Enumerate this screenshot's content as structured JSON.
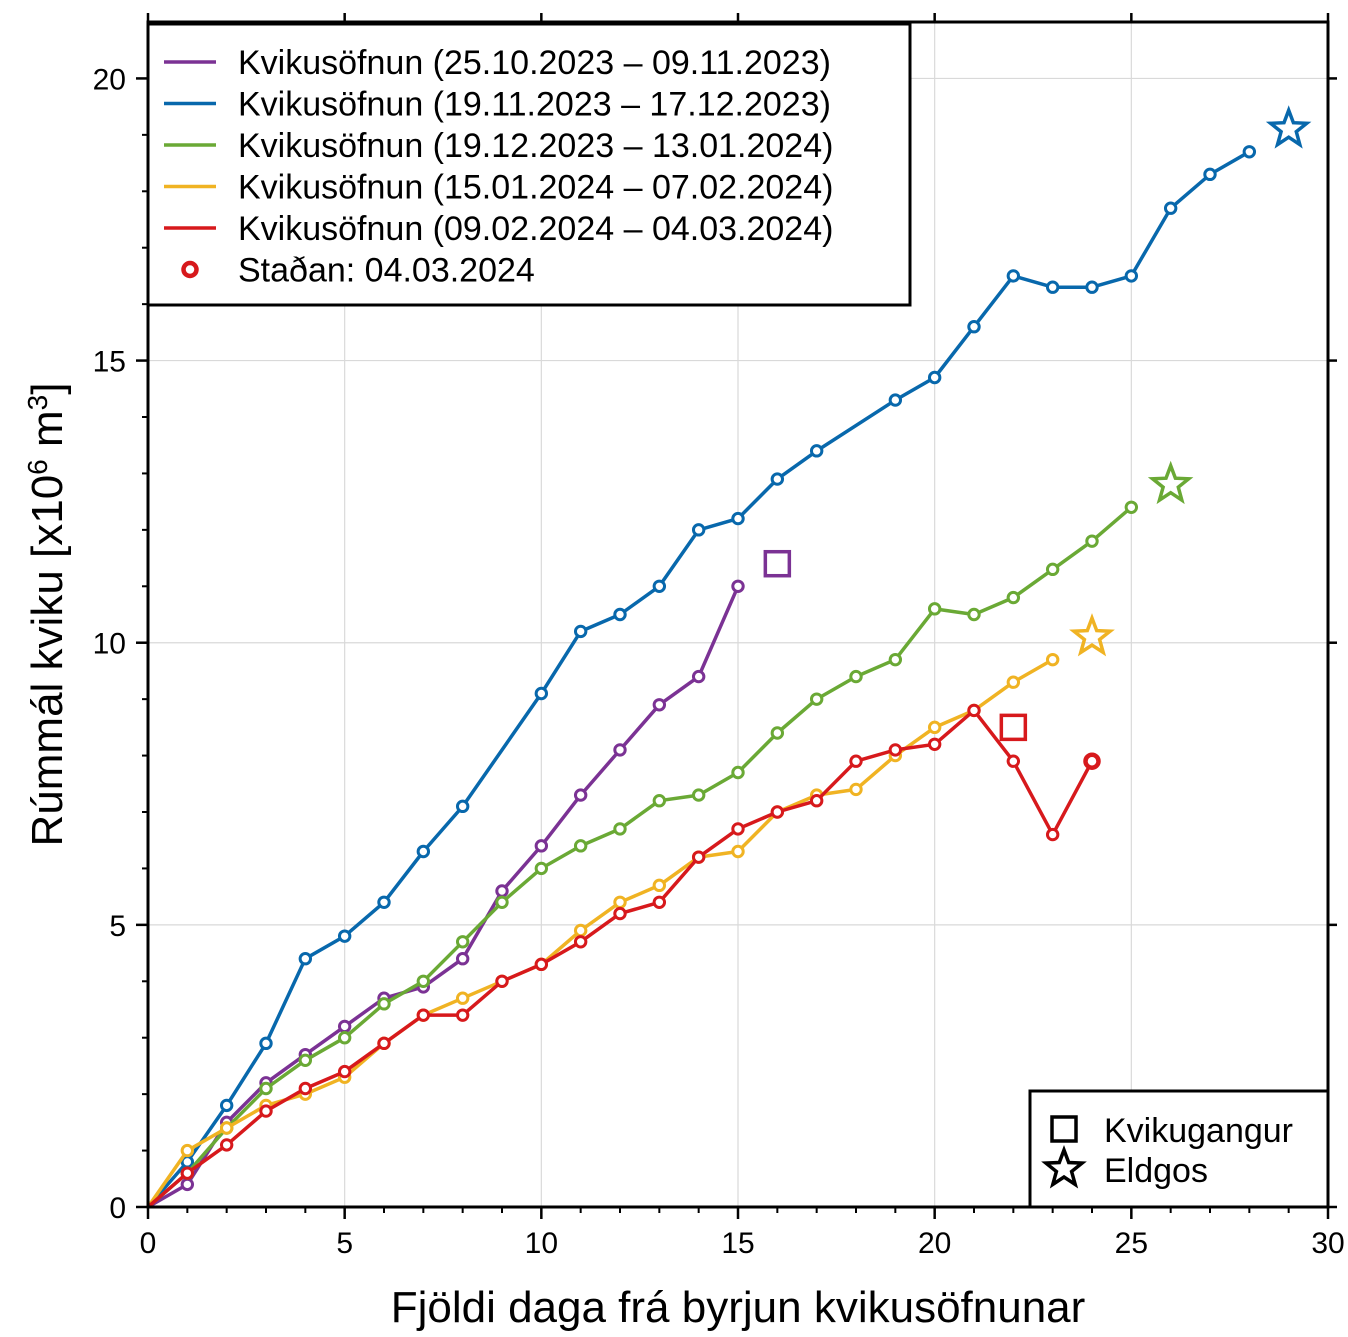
{
  "chart_data": {
    "type": "line",
    "xlabel": "Fjöldi daga frá byrjun kvikusöfnunar",
    "ylabel": "Rúmmál kviku [x10",
    "ylabel_exp": "6",
    "ylabel_unit": " m",
    "ylabel_unit_exp": "3",
    "ylabel_close": "]",
    "xlim": [
      0,
      30
    ],
    "ylim": [
      0,
      21
    ],
    "x_ticks": [
      "0",
      "5",
      "10",
      "15",
      "20",
      "25",
      "30"
    ],
    "y_ticks": [
      "0",
      "5",
      "10",
      "15",
      "20"
    ],
    "grid": true,
    "legend_position": "top-left",
    "series": [
      {
        "name": "Kvikusöfnun (25.10.2023 – 09.11.2023)",
        "color": "#7b3294",
        "x": [
          0,
          1,
          2,
          3,
          4,
          5,
          6,
          7,
          8,
          9,
          10,
          11,
          12,
          13,
          14,
          15
        ],
        "y": [
          0,
          0.4,
          1.5,
          2.2,
          2.7,
          3.2,
          3.7,
          3.9,
          4.4,
          5.6,
          6.4,
          7.3,
          8.1,
          8.9,
          9.4,
          11.0
        ],
        "intrusion": {
          "x": 16,
          "y": 11.4
        }
      },
      {
        "name": "Kvikusöfnun (19.11.2023 – 17.12.2023)",
        "color": "#0868ac",
        "x": [
          0,
          1,
          2,
          3,
          4,
          5,
          6,
          7,
          8,
          10,
          11,
          12,
          13,
          14,
          15,
          16,
          17,
          19,
          20,
          21,
          22,
          23,
          24,
          25,
          26,
          27,
          28
        ],
        "y": [
          0,
          0.8,
          1.8,
          2.9,
          4.4,
          4.8,
          5.4,
          6.3,
          7.1,
          9.1,
          10.2,
          10.5,
          11.0,
          12.0,
          12.2,
          12.9,
          13.4,
          14.3,
          14.7,
          15.6,
          16.5,
          16.3,
          16.3,
          16.5,
          17.7,
          18.3,
          18.7
        ],
        "eruption": {
          "x": 29,
          "y": 19.1
        }
      },
      {
        "name": "Kvikusöfnun (19.12.2023 – 13.01.2024)",
        "color": "#6aa935",
        "x": [
          0,
          1,
          2,
          3,
          4,
          5,
          6,
          7,
          8,
          9,
          10,
          11,
          12,
          13,
          14,
          15,
          16,
          17,
          18,
          19,
          20,
          21,
          22,
          23,
          24,
          25
        ],
        "y": [
          0,
          0.6,
          1.4,
          2.1,
          2.6,
          3.0,
          3.6,
          4.0,
          4.7,
          5.4,
          6.0,
          6.4,
          6.7,
          7.2,
          7.3,
          7.7,
          8.4,
          9.0,
          9.4,
          9.7,
          10.6,
          10.5,
          10.8,
          11.3,
          11.8,
          12.4
        ],
        "eruption": {
          "x": 26,
          "y": 12.8
        }
      },
      {
        "name": "Kvikusöfnun (15.01.2024 – 07.02.2024)",
        "color": "#f0b323",
        "x": [
          0,
          1,
          2,
          3,
          4,
          5,
          6,
          7,
          8,
          9,
          10,
          11,
          12,
          13,
          14,
          15,
          16,
          17,
          18,
          19,
          20,
          21,
          22,
          23
        ],
        "y": [
          0,
          1.0,
          1.4,
          1.8,
          2.0,
          2.3,
          2.9,
          3.4,
          3.7,
          4.0,
          4.3,
          4.9,
          5.4,
          5.7,
          6.2,
          6.3,
          7.0,
          7.3,
          7.4,
          8.0,
          8.5,
          8.8,
          9.3,
          9.7
        ],
        "eruption": {
          "x": 24,
          "y": 10.1
        }
      },
      {
        "name": "Kvikusöfnun (09.02.2024 – 04.03.2024)",
        "color": "#d7191c",
        "x": [
          0,
          1,
          2,
          3,
          4,
          5,
          6,
          7,
          8,
          9,
          10,
          11,
          12,
          13,
          14,
          15,
          16,
          17,
          18,
          19,
          20,
          21,
          22,
          23,
          24
        ],
        "y": [
          0,
          0.6,
          1.1,
          1.7,
          2.1,
          2.4,
          2.9,
          3.4,
          3.4,
          4.0,
          4.3,
          4.7,
          5.2,
          5.4,
          6.2,
          6.7,
          7.0,
          7.2,
          7.9,
          8.1,
          8.2,
          8.8,
          7.9,
          6.6,
          7.9
        ],
        "intrusion": {
          "x": 22,
          "y": 8.5
        },
        "current": {
          "x": 24,
          "y": 7.9
        }
      }
    ],
    "legend_current_label": "Staðan: 04.03.2024",
    "marker_legend": {
      "intrusion_label": "Kvikugangur",
      "eruption_label": "Eldgos"
    }
  }
}
